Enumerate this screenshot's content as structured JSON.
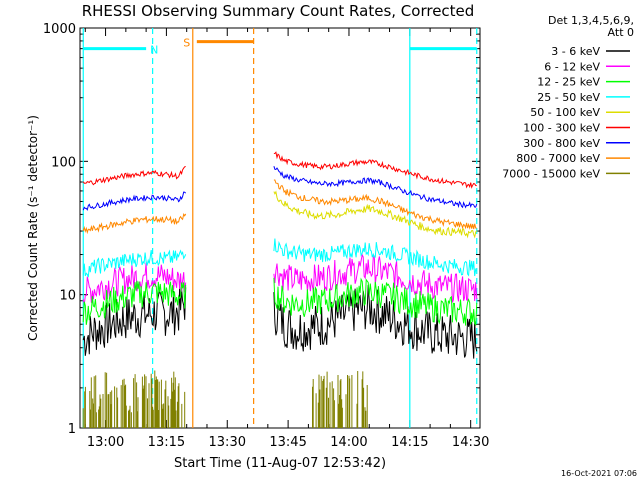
{
  "chart_data": {
    "type": "line",
    "title": "RHESSI Observing Summary Count Rates, Corrected",
    "ylabel": "Corrected Count Rate (s⁻¹ detector⁻¹)",
    "xlabel": "Start Time (11-Aug-07 12:53:42)",
    "x_unit": "minutes since 00:00 UT",
    "xlim": [
      773.7,
      872.3
    ],
    "ylim": [
      1,
      1000
    ],
    "yscale": "log",
    "x_ticks": [
      {
        "t": 780,
        "label": "13:00"
      },
      {
        "t": 795,
        "label": "13:15"
      },
      {
        "t": 810,
        "label": "13:30"
      },
      {
        "t": 825,
        "label": "13:45"
      },
      {
        "t": 840,
        "label": "14:00"
      },
      {
        "t": 855,
        "label": "14:15"
      },
      {
        "t": 870,
        "label": "14:30"
      }
    ],
    "y_ticks": [
      {
        "v": 1,
        "label": "1"
      },
      {
        "v": 10,
        "label": "10"
      },
      {
        "v": 100,
        "label": "100"
      },
      {
        "v": 1000,
        "label": "1000"
      }
    ],
    "legend_header": [
      "Det 1,3,4,5,6,9,",
      "Att 0"
    ],
    "legend_position": "right",
    "series": [
      {
        "name": "3 - 6 keV",
        "color": "#000000",
        "x": [
          774.5,
          777,
          780,
          783,
          786,
          789,
          792,
          795,
          798,
          799.8,
          821.5,
          824,
          827,
          830,
          833,
          836,
          839,
          842,
          845,
          848,
          851,
          854,
          857,
          860,
          863,
          866,
          869,
          871.5
        ],
        "y": [
          4.6,
          5.3,
          5.8,
          6.3,
          6.8,
          7.0,
          7.3,
          7.2,
          7.5,
          9,
          7.6,
          6.0,
          5.5,
          5.7,
          5.9,
          6.4,
          7.0,
          7.7,
          8.0,
          7.3,
          6.6,
          6.0,
          5.5,
          5.1,
          4.9,
          4.8,
          4.7,
          4.6
        ]
      },
      {
        "name": "6 - 12 keV",
        "color": "#ff00ff",
        "x": [
          774.5,
          777,
          780,
          783,
          786,
          789,
          792,
          795,
          798,
          799.8,
          821.5,
          824,
          827,
          830,
          833,
          836,
          839,
          842,
          845,
          848,
          851,
          854,
          857,
          860,
          863,
          866,
          869,
          871.5
        ],
        "y": [
          10.5,
          11,
          11.8,
          12.5,
          13.2,
          13.8,
          14,
          13.6,
          12.8,
          13,
          16,
          13.5,
          12.8,
          13,
          13.4,
          14,
          14.8,
          15.6,
          15.8,
          15,
          14.2,
          13.2,
          12.4,
          11.8,
          11.4,
          11.2,
          11,
          11
        ]
      },
      {
        "name": "12 - 25 keV",
        "color": "#00ff00",
        "x": [
          774.5,
          777,
          780,
          783,
          786,
          789,
          792,
          795,
          798,
          799.8,
          821.5,
          824,
          827,
          830,
          833,
          836,
          839,
          842,
          845,
          848,
          851,
          854,
          857,
          860,
          863,
          866,
          869,
          871.5
        ],
        "y": [
          7.5,
          8.0,
          8.6,
          9.2,
          9.8,
          10.2,
          10.5,
          10.2,
          9.8,
          10.0,
          10.5,
          9.0,
          8.6,
          8.7,
          8.9,
          9.3,
          9.8,
          10.3,
          10.5,
          10.1,
          9.6,
          8.9,
          8.4,
          8.0,
          7.8,
          7.6,
          7.5,
          7.4
        ]
      },
      {
        "name": "25 - 50 keV",
        "color": "#00ffff",
        "x": [
          774.5,
          777,
          780,
          783,
          786,
          789,
          792,
          795,
          798,
          799.8,
          821.5,
          824,
          827,
          830,
          833,
          836,
          839,
          842,
          845,
          848,
          851,
          854,
          857,
          860,
          863,
          866,
          869,
          871.5
        ],
        "y": [
          15,
          16,
          16.8,
          17.5,
          18.2,
          18.8,
          19,
          18.5,
          19,
          22,
          24,
          21.5,
          20.5,
          20,
          20,
          20.3,
          21,
          21.8,
          22,
          21.5,
          20.5,
          19.5,
          18.5,
          17.5,
          16.8,
          16.3,
          16,
          15.8
        ]
      },
      {
        "name": "50 - 100 keV",
        "color": "#dddd00",
        "x": [
          821.5,
          824,
          827,
          830,
          833,
          836,
          839,
          842,
          845,
          848,
          851,
          854,
          857,
          860,
          863,
          866,
          869,
          871.5
        ],
        "y": [
          58,
          48,
          43,
          40,
          39,
          39.5,
          41,
          43,
          44,
          42,
          39,
          36,
          33,
          31,
          30,
          29.5,
          29,
          28.5
        ]
      },
      {
        "name": "100 - 300 keV",
        "color": "#ff0000",
        "x": [
          774.5,
          777,
          780,
          783,
          786,
          789,
          792,
          795,
          798,
          799.8,
          821.5,
          824,
          827,
          830,
          833,
          836,
          839,
          842,
          845,
          848,
          851,
          854,
          857,
          860,
          863,
          866,
          869,
          871.5
        ],
        "y": [
          68,
          70,
          73,
          76,
          79,
          81,
          82,
          80,
          77,
          90,
          115,
          101,
          96,
          93,
          91,
          92,
          95,
          98,
          99,
          95,
          89,
          83,
          78,
          74,
          71,
          69,
          67,
          66
        ]
      },
      {
        "name": "300 - 800 keV",
        "color": "#0000ff",
        "x": [
          774.5,
          777,
          780,
          783,
          786,
          789,
          792,
          795,
          798,
          799.8,
          821.5,
          824,
          827,
          830,
          833,
          836,
          839,
          842,
          845,
          848,
          851,
          854,
          857,
          860,
          863,
          866,
          869,
          871.5
        ],
        "y": [
          45,
          46,
          48,
          50,
          52,
          53,
          54,
          53,
          51,
          60,
          90,
          78,
          73,
          70,
          68,
          68,
          69,
          71,
          72,
          69,
          64,
          59,
          55,
          52,
          50,
          48,
          47,
          46
        ]
      },
      {
        "name": "800 - 7000 keV",
        "color": "#ff8800",
        "x": [
          774.5,
          777,
          780,
          783,
          786,
          789,
          792,
          795,
          798,
          799.8,
          821.5,
          824,
          827,
          830,
          833,
          836,
          839,
          842,
          845,
          848,
          851,
          854,
          857,
          860,
          863,
          866,
          869,
          871.5
        ],
        "y": [
          30,
          31,
          32.5,
          34,
          35.5,
          36.5,
          37,
          36.5,
          35,
          40,
          72,
          60,
          55,
          52,
          50,
          50,
          51,
          52,
          53,
          50,
          46,
          42,
          39,
          37,
          35,
          34,
          33,
          32
        ]
      },
      {
        "name": "7000 - 15000 keV",
        "color": "#808000",
        "x": [
          774.5,
          799.8,
          831,
          845
        ],
        "y": [
          1,
          2.7,
          1,
          2.7
        ],
        "note": "sparse spikes between 1 and ~2.7 during 774.5-799.8 and 831-845"
      }
    ],
    "annotations": [
      {
        "label": "N",
        "color": "#00ffff",
        "bar_x": [
          774.5,
          790
        ],
        "level": 700,
        "t": 792
      },
      {
        "label": "S",
        "color": "#ff8800",
        "bar_x": [
          802.5,
          816.5
        ],
        "level": 790,
        "t": 800
      },
      {
        "label": "",
        "color": "#00ffff",
        "bar_x": [
          855,
          871.5
        ],
        "level": 700
      }
    ],
    "vertical_lines": [
      {
        "t": 774.5,
        "color": "#00ffff",
        "style": "solid"
      },
      {
        "t": 791.6,
        "color": "#00ffff",
        "style": "dashed"
      },
      {
        "t": 801.5,
        "color": "#ff8800",
        "style": "solid"
      },
      {
        "t": 816.5,
        "color": "#ff8800",
        "style": "dashed"
      },
      {
        "t": 855,
        "color": "#00ffff",
        "style": "solid"
      },
      {
        "t": 871.5,
        "color": "#00ffff",
        "style": "dashed"
      }
    ]
  },
  "footer_timestamp": "16-Oct-2021 07:06"
}
